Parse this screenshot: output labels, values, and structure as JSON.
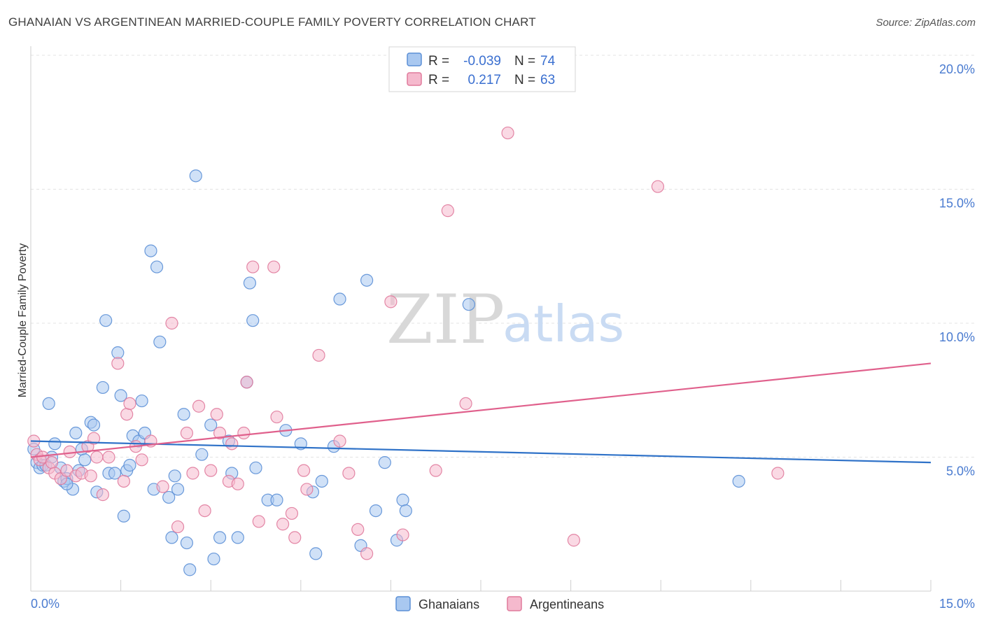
{
  "title": "GHANAIAN VS ARGENTINEAN MARRIED-COUPLE FAMILY POVERTY CORRELATION CHART",
  "source": "Source: ZipAtlas.com",
  "watermark": {
    "zip": "ZIP",
    "atlas": "atlas"
  },
  "legend": {
    "rows": [
      {
        "r_label": "R =",
        "r_value": "-0.039",
        "n_label": "N =",
        "n_value": "74"
      },
      {
        "r_label": "R =",
        "r_value": "0.217",
        "n_label": "N =",
        "n_value": "63"
      }
    ]
  },
  "bottom_legend": {
    "items": [
      "Ghanaians",
      "Argentineans"
    ]
  },
  "colors": {
    "blue_fill": "#a9c8f0",
    "blue_stroke": "#5b8fd6",
    "blue_line": "#2f72c8",
    "pink_fill": "#f5b9cd",
    "pink_stroke": "#e07a9c",
    "pink_line": "#e0608c",
    "grid": "#e3e3e3",
    "tick": "#4a7bd0"
  },
  "chart_data": {
    "type": "scatter",
    "title": "GHANAIAN VS ARGENTINEAN MARRIED-COUPLE FAMILY POVERTY CORRELATION CHART",
    "xlabel": "",
    "ylabel": "Married-Couple Family Poverty",
    "xlim": [
      0,
      15
    ],
    "ylim": [
      0,
      20
    ],
    "x_tick_labels": [
      "0.0%",
      "15.0%"
    ],
    "y_ticks": [
      5,
      10,
      15,
      20
    ],
    "y_tick_labels": [
      "5.0%",
      "10.0%",
      "15.0%",
      "20.0%"
    ],
    "series": [
      {
        "name": "Ghanaians",
        "stats": {
          "R": -0.039,
          "N": 74
        },
        "trend": {
          "x": [
            0,
            15
          ],
          "y": [
            5.6,
            4.8
          ]
        },
        "points": [
          [
            0.05,
            5.3
          ],
          [
            0.1,
            4.8
          ],
          [
            0.15,
            4.6
          ],
          [
            0.2,
            4.7
          ],
          [
            0.25,
            4.7
          ],
          [
            0.3,
            7.0
          ],
          [
            0.35,
            5.0
          ],
          [
            0.4,
            5.5
          ],
          [
            0.5,
            4.6
          ],
          [
            0.55,
            4.1
          ],
          [
            0.6,
            4.2
          ],
          [
            0.7,
            3.8
          ],
          [
            0.75,
            5.9
          ],
          [
            0.8,
            4.5
          ],
          [
            0.85,
            5.3
          ],
          [
            0.9,
            4.9
          ],
          [
            1.0,
            6.3
          ],
          [
            1.05,
            6.2
          ],
          [
            1.1,
            3.7
          ],
          [
            1.2,
            7.6
          ],
          [
            1.25,
            10.1
          ],
          [
            1.3,
            4.4
          ],
          [
            1.4,
            4.4
          ],
          [
            1.45,
            8.9
          ],
          [
            1.5,
            7.3
          ],
          [
            1.55,
            2.8
          ],
          [
            1.6,
            4.5
          ],
          [
            1.65,
            4.7
          ],
          [
            1.7,
            5.8
          ],
          [
            1.8,
            5.6
          ],
          [
            1.85,
            7.1
          ],
          [
            1.9,
            5.9
          ],
          [
            2.0,
            12.7
          ],
          [
            2.05,
            3.8
          ],
          [
            2.1,
            12.1
          ],
          [
            2.15,
            9.3
          ],
          [
            2.3,
            3.5
          ],
          [
            2.35,
            2.0
          ],
          [
            2.4,
            4.3
          ],
          [
            2.45,
            3.8
          ],
          [
            2.55,
            6.6
          ],
          [
            2.6,
            1.8
          ],
          [
            2.65,
            0.8
          ],
          [
            2.75,
            15.5
          ],
          [
            2.85,
            5.1
          ],
          [
            3.0,
            6.2
          ],
          [
            3.05,
            1.2
          ],
          [
            3.15,
            2.0
          ],
          [
            3.3,
            5.6
          ],
          [
            3.35,
            4.4
          ],
          [
            3.45,
            2.0
          ],
          [
            3.6,
            7.8
          ],
          [
            3.65,
            11.5
          ],
          [
            3.7,
            10.1
          ],
          [
            3.75,
            4.6
          ],
          [
            3.95,
            3.4
          ],
          [
            4.1,
            3.4
          ],
          [
            4.25,
            6.0
          ],
          [
            4.5,
            5.5
          ],
          [
            4.7,
            3.7
          ],
          [
            4.75,
            1.4
          ],
          [
            4.85,
            4.1
          ],
          [
            5.05,
            5.4
          ],
          [
            5.15,
            10.9
          ],
          [
            5.5,
            1.7
          ],
          [
            5.6,
            11.6
          ],
          [
            5.75,
            3.0
          ],
          [
            5.9,
            4.8
          ],
          [
            6.1,
            1.9
          ],
          [
            6.2,
            3.4
          ],
          [
            6.25,
            3.0
          ],
          [
            7.3,
            10.7
          ],
          [
            11.8,
            4.1
          ],
          [
            0.6,
            4.0
          ]
        ]
      },
      {
        "name": "Argentineans",
        "stats": {
          "R": 0.217,
          "N": 63
        },
        "trend": {
          "x": [
            0,
            15
          ],
          "y": [
            5.0,
            8.5
          ]
        },
        "points": [
          [
            0.05,
            5.6
          ],
          [
            0.1,
            5.1
          ],
          [
            0.15,
            4.9
          ],
          [
            0.2,
            5.0
          ],
          [
            0.3,
            4.6
          ],
          [
            0.35,
            4.8
          ],
          [
            0.4,
            4.4
          ],
          [
            0.5,
            4.2
          ],
          [
            0.6,
            4.5
          ],
          [
            0.65,
            5.2
          ],
          [
            0.75,
            4.3
          ],
          [
            0.85,
            4.4
          ],
          [
            0.95,
            5.4
          ],
          [
            1.0,
            4.3
          ],
          [
            1.05,
            5.7
          ],
          [
            1.1,
            5.0
          ],
          [
            1.2,
            3.6
          ],
          [
            1.3,
            5.0
          ],
          [
            1.45,
            8.5
          ],
          [
            1.55,
            4.1
          ],
          [
            1.6,
            6.6
          ],
          [
            1.65,
            7.0
          ],
          [
            1.75,
            5.4
          ],
          [
            1.85,
            4.9
          ],
          [
            2.0,
            5.6
          ],
          [
            2.2,
            3.9
          ],
          [
            2.35,
            10.0
          ],
          [
            2.45,
            2.4
          ],
          [
            2.6,
            5.9
          ],
          [
            2.7,
            4.4
          ],
          [
            2.8,
            6.9
          ],
          [
            2.9,
            3.0
          ],
          [
            3.0,
            4.5
          ],
          [
            3.1,
            6.6
          ],
          [
            3.15,
            5.9
          ],
          [
            3.3,
            4.1
          ],
          [
            3.35,
            5.5
          ],
          [
            3.45,
            4.0
          ],
          [
            3.55,
            5.9
          ],
          [
            3.6,
            7.8
          ],
          [
            3.7,
            12.1
          ],
          [
            3.8,
            2.6
          ],
          [
            4.05,
            12.1
          ],
          [
            4.1,
            6.5
          ],
          [
            4.2,
            2.5
          ],
          [
            4.35,
            2.9
          ],
          [
            4.4,
            2.0
          ],
          [
            4.55,
            4.5
          ],
          [
            4.6,
            3.8
          ],
          [
            4.8,
            8.8
          ],
          [
            5.15,
            5.6
          ],
          [
            5.3,
            4.4
          ],
          [
            5.45,
            2.3
          ],
          [
            5.6,
            1.4
          ],
          [
            6.0,
            10.8
          ],
          [
            6.2,
            2.1
          ],
          [
            6.75,
            4.5
          ],
          [
            6.95,
            14.2
          ],
          [
            7.25,
            7.0
          ],
          [
            7.95,
            17.1
          ],
          [
            9.05,
            1.9
          ],
          [
            10.45,
            15.1
          ],
          [
            12.45,
            4.4
          ]
        ]
      }
    ]
  }
}
